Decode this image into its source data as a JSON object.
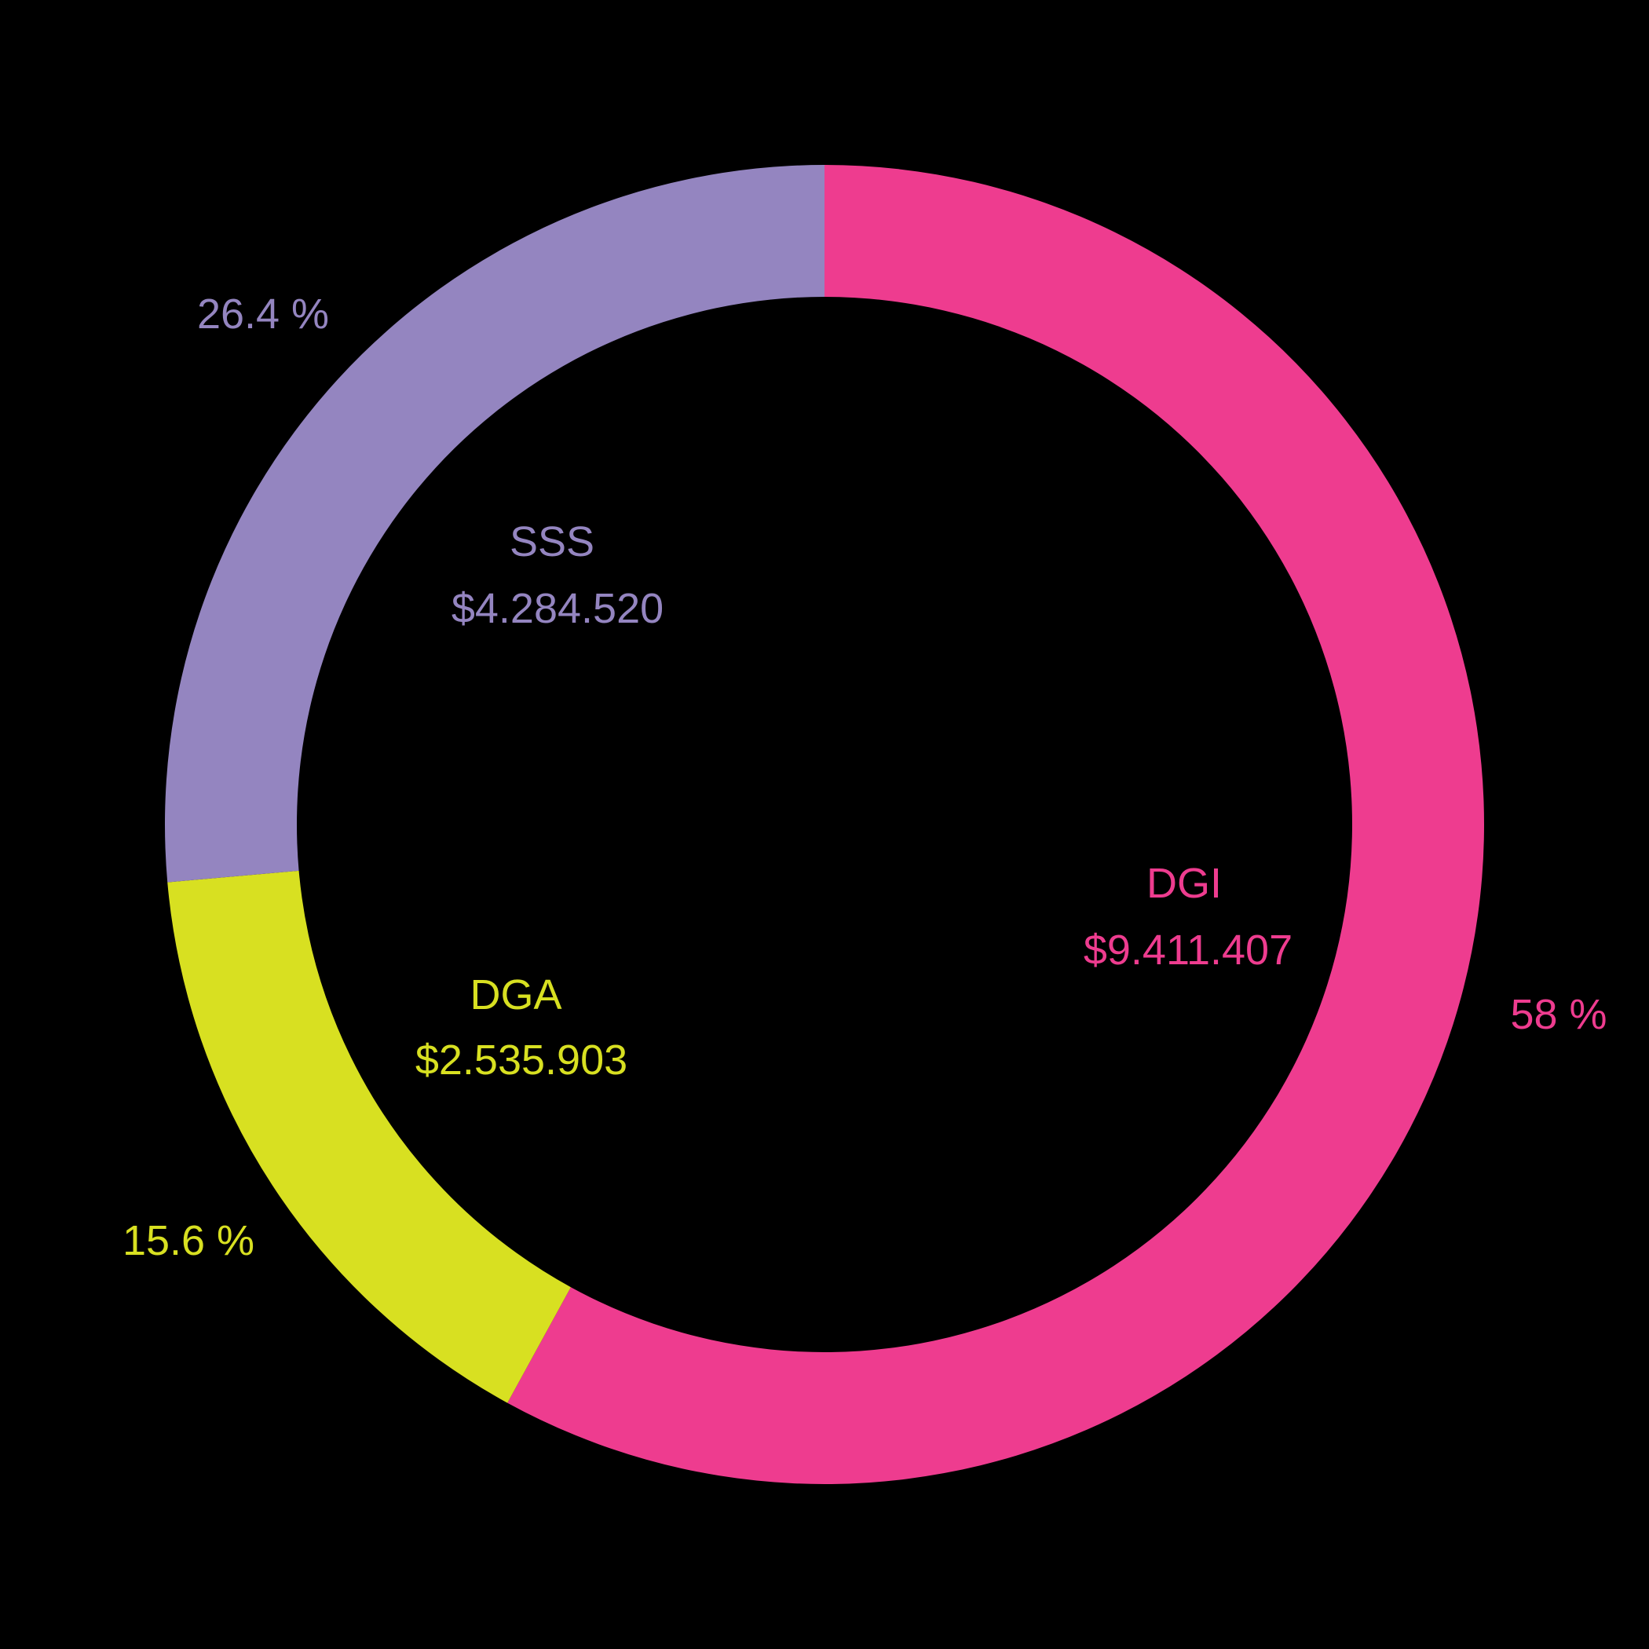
{
  "chart_data": {
    "type": "pie",
    "variant": "donut",
    "title": "",
    "center": [
      1050,
      1050
    ],
    "outer_radius": 840,
    "inner_radius": 672,
    "start_angle_deg": 0,
    "direction": "clockwise",
    "categories": [
      "DGI",
      "DGA",
      "SSS"
    ],
    "values": [
      9411407,
      2535903,
      4284520
    ],
    "value_labels": [
      "$9.411.407",
      "$2.535.903",
      "$4.284.520"
    ],
    "percent_labels": [
      "58 %",
      "15.6 %",
      "26.4 %"
    ],
    "percents": [
      58.0,
      15.6,
      26.4
    ],
    "colors": [
      "#EE3C8F",
      "#D8E021",
      "#9485C0"
    ],
    "legend": "none",
    "background": "#000000"
  },
  "labels": {
    "dgi": {
      "name": "DGI",
      "value": "$9.411.407",
      "percent": "58 %",
      "color": "#EE3C8F",
      "name_pos": [
        1508,
        1125
      ],
      "value_pos": [
        1513,
        1210
      ],
      "percent_pos": [
        1985,
        1292
      ]
    },
    "dga": {
      "name": "DGA",
      "value": "$2.535.903",
      "percent": "15.6 %",
      "color": "#D8E021",
      "name_pos": [
        657,
        1267
      ],
      "value_pos": [
        664,
        1350
      ],
      "percent_pos": [
        240,
        1580
      ]
    },
    "sss": {
      "name": "SSS",
      "value": "$4.284.520",
      "percent": "26.4 %",
      "color": "#9485C0",
      "name_pos": [
        703,
        690
      ],
      "value_pos": [
        710,
        775
      ],
      "percent_pos": [
        335,
        400
      ]
    }
  }
}
